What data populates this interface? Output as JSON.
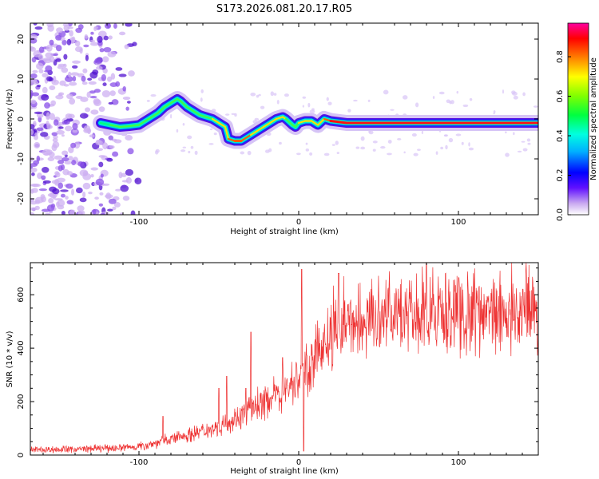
{
  "chart_data": [
    {
      "type": "heatmap",
      "title": "S173.2026.081.20.17.R05",
      "xlabel": "Height of straight line (km)",
      "ylabel": "Frequency (Hz)",
      "xlim": [
        -168,
        150
      ],
      "ylim": [
        -24,
        24
      ],
      "xticks": [
        -100,
        0,
        100
      ],
      "yticks": [
        -20,
        -10,
        0,
        10,
        20
      ],
      "colorbar": {
        "label": "Normalized spectral amplitude",
        "range": [
          0,
          0.97
        ],
        "ticks": [
          0.0,
          0.2,
          0.4,
          0.6,
          0.8
        ],
        "colors": [
          "#ffffff",
          "#c8a8f0",
          "#6010ff",
          "#0000ff",
          "#00b0ff",
          "#00ffe0",
          "#00ff40",
          "#80ff00",
          "#ffff00",
          "#ff8000",
          "#ff0000",
          "#ff00a0"
        ]
      },
      "ridge": {
        "x": [
          -124,
          -118,
          -112,
          -106,
          -100,
          -94,
          -88,
          -84,
          -80,
          -76,
          -74,
          -70,
          -66,
          -62,
          -58,
          -54,
          -50,
          -46,
          -44,
          -40,
          -36,
          -30,
          -26,
          -22,
          -18,
          -14,
          -10,
          -8,
          -4,
          -2,
          0,
          4,
          8,
          12,
          16,
          20,
          30,
          50,
          100,
          150
        ],
        "y": [
          -1,
          -1.5,
          -2,
          -1.8,
          -1.5,
          0,
          1.5,
          3,
          4,
          5,
          4.5,
          3,
          2,
          1,
          0.5,
          0,
          -1,
          -2,
          -5,
          -5.5,
          -5.5,
          -4,
          -3,
          -2,
          -1,
          0,
          0.5,
          0,
          -1.5,
          -2,
          -1,
          -0.5,
          -0.5,
          -1.5,
          0,
          -0.5,
          -1,
          -1,
          -1,
          -1
        ],
        "amplitude": [
          0.4,
          0.5,
          0.6,
          0.55,
          0.5,
          0.55,
          0.6,
          0.7,
          0.65,
          0.6,
          0.55,
          0.6,
          0.65,
          0.7,
          0.6,
          0.7,
          0.75,
          0.8,
          0.85,
          0.9,
          0.9,
          0.8,
          0.75,
          0.7,
          0.8,
          0.85,
          0.8,
          0.75,
          0.6,
          0.55,
          0.7,
          0.75,
          0.8,
          0.85,
          0.8,
          0.9,
          0.95,
          0.95,
          0.95,
          0.9
        ]
      }
    },
    {
      "type": "line",
      "title": "",
      "xlabel": "Height of straight line (km)",
      "ylabel": "SNR (10 * v/v)",
      "xlim": [
        -168,
        150
      ],
      "ylim": [
        0,
        720
      ],
      "xticks": [
        -100,
        0,
        100
      ],
      "yticks": [
        0,
        200,
        400,
        600
      ],
      "color": "#ee3333",
      "baseline": {
        "x": [
          -168,
          -140,
          -120,
          -100,
          -90,
          -80,
          -70,
          -60,
          -50,
          -40,
          -35,
          -30,
          -20,
          -10,
          -5,
          0,
          5,
          10,
          15,
          20,
          25,
          30,
          40,
          60,
          80,
          100,
          120,
          150
        ],
        "y": [
          20,
          22,
          25,
          32,
          45,
          60,
          75,
          90,
          110,
          135,
          150,
          175,
          205,
          235,
          265,
          285,
          320,
          365,
          410,
          440,
          470,
          490,
          500,
          510,
          520,
          525,
          530,
          535
        ]
      },
      "spikes": [
        {
          "x": 2,
          "y": 695
        },
        {
          "x": 3,
          "y": 15
        },
        {
          "x": -30,
          "y": 460
        },
        {
          "x": -45,
          "y": 295
        },
        {
          "x": -33,
          "y": 250
        },
        {
          "x": -10,
          "y": 365
        },
        {
          "x": -85,
          "y": 145
        },
        {
          "x": -50,
          "y": 250
        },
        {
          "x": 25,
          "y": 680
        },
        {
          "x": 80,
          "y": 720
        }
      ]
    }
  ]
}
